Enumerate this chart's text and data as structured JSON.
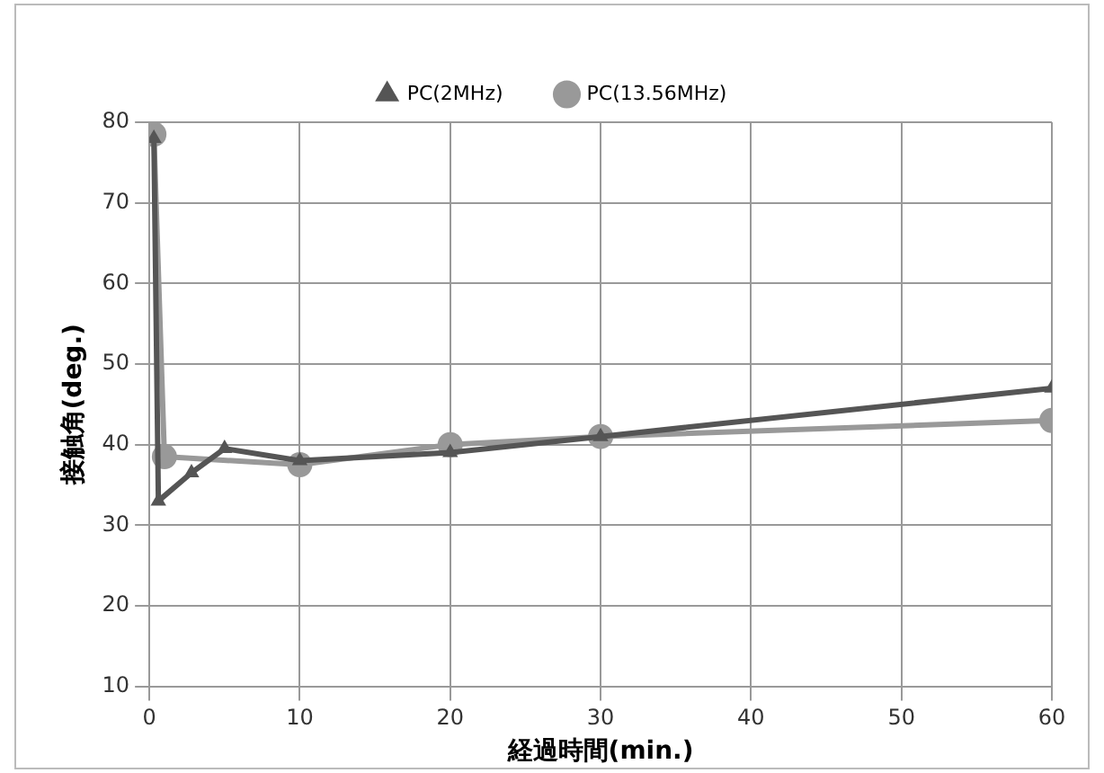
{
  "chart_data": {
    "type": "line",
    "xlabel": "経過時間(min.)",
    "ylabel": "接触角(deg.)",
    "xlim": [
      0,
      60
    ],
    "xticks": [
      0,
      10,
      20,
      30,
      40,
      50,
      60
    ],
    "ylim": [
      10,
      80
    ],
    "yticks": [
      10,
      20,
      30,
      40,
      50,
      60,
      70,
      80
    ],
    "grid": true,
    "legend": "top",
    "line_style": "solid",
    "series": [
      {
        "name": "PC(2MHz)",
        "color": "#555555",
        "marker": "triangle",
        "x": [
          0.3,
          0.6,
          2.8,
          5,
          10,
          20,
          30,
          60
        ],
        "values": [
          78,
          33,
          36.5,
          39.5,
          38,
          39,
          41,
          47
        ]
      },
      {
        "name": "PC(13.56MHz)",
        "color": "#999999",
        "marker": "circle",
        "x": [
          0.3,
          1,
          10,
          20,
          30,
          60
        ],
        "values": [
          78.5,
          38.5,
          37.5,
          40,
          41,
          43
        ]
      }
    ]
  }
}
